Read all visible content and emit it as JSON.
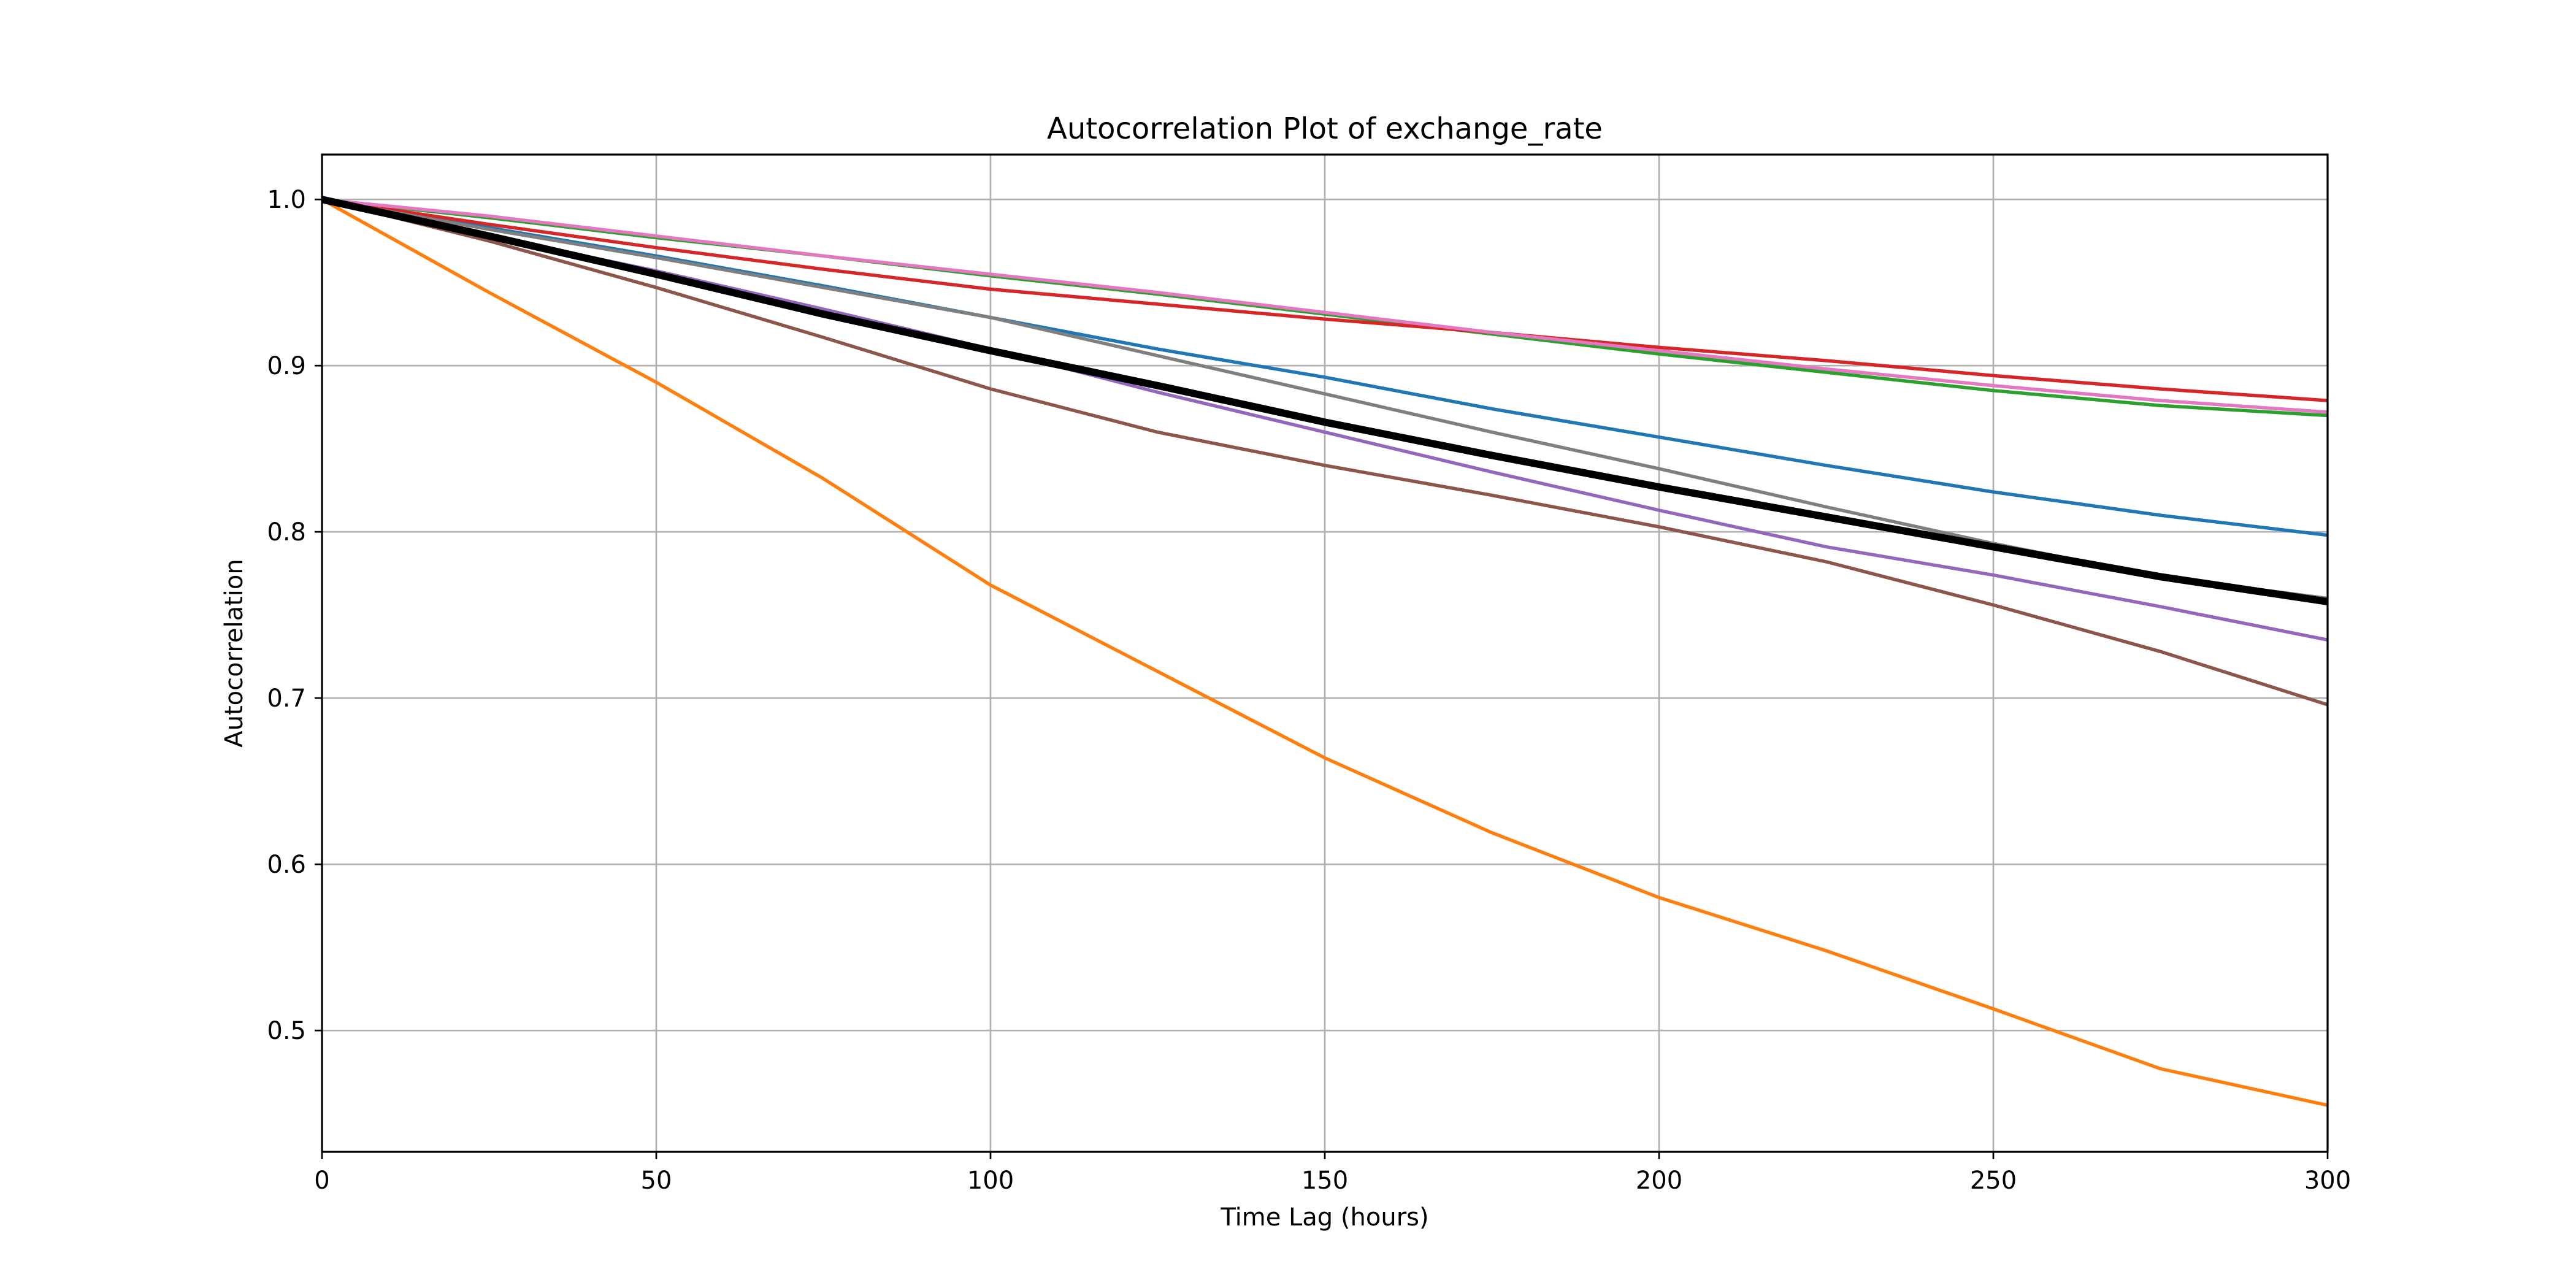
{
  "chart_data": {
    "type": "line",
    "title": "Autocorrelation Plot of exchange_rate",
    "xlabel": "Time Lag (hours)",
    "ylabel": "Autocorrelation",
    "xlim": [
      0,
      300
    ],
    "ylim": [
      0.427,
      1.027
    ],
    "xticks": [
      0,
      50,
      100,
      150,
      200,
      250,
      300
    ],
    "yticks": [
      0.5,
      0.6,
      0.7,
      0.8,
      0.9,
      1.0
    ],
    "ytick_labels": [
      "0.5",
      "0.6",
      "0.7",
      "0.8",
      "0.9",
      "1.0"
    ],
    "grid": true,
    "legend": "none",
    "x": [
      0,
      25,
      50,
      75,
      100,
      125,
      150,
      175,
      200,
      225,
      250,
      275,
      300
    ],
    "series": [
      {
        "color": "#1f77b4",
        "width": "normal",
        "values": [
          1.0,
          0.983,
          0.966,
          0.948,
          0.929,
          0.91,
          0.893,
          0.874,
          0.857,
          0.84,
          0.824,
          0.81,
          0.798
        ]
      },
      {
        "color": "#ff7f0e",
        "width": "normal",
        "values": [
          1.0,
          0.944,
          0.89,
          0.832,
          0.768,
          0.716,
          0.664,
          0.619,
          0.58,
          0.548,
          0.513,
          0.477,
          0.455
        ]
      },
      {
        "color": "#2ca02c",
        "width": "normal",
        "values": [
          1.0,
          0.989,
          0.977,
          0.966,
          0.954,
          0.943,
          0.931,
          0.919,
          0.907,
          0.896,
          0.885,
          0.876,
          0.87
        ]
      },
      {
        "color": "#d62728",
        "width": "normal",
        "values": [
          1.0,
          0.985,
          0.971,
          0.958,
          0.946,
          0.937,
          0.928,
          0.92,
          0.911,
          0.903,
          0.894,
          0.886,
          0.879
        ]
      },
      {
        "color": "#9467bd",
        "width": "normal",
        "values": [
          1.0,
          0.978,
          0.957,
          0.934,
          0.91,
          0.884,
          0.86,
          0.836,
          0.813,
          0.791,
          0.774,
          0.755,
          0.735
        ]
      },
      {
        "color": "#8c564b",
        "width": "normal",
        "values": [
          1.0,
          0.975,
          0.947,
          0.917,
          0.886,
          0.86,
          0.84,
          0.822,
          0.803,
          0.782,
          0.756,
          0.728,
          0.696
        ]
      },
      {
        "color": "#e377c2",
        "width": "normal",
        "values": [
          1.0,
          0.99,
          0.978,
          0.966,
          0.955,
          0.944,
          0.932,
          0.92,
          0.909,
          0.898,
          0.888,
          0.879,
          0.872
        ]
      },
      {
        "color": "#7f7f7f",
        "width": "normal",
        "values": [
          1.0,
          0.982,
          0.965,
          0.947,
          0.929,
          0.906,
          0.883,
          0.86,
          0.838,
          0.815,
          0.793,
          0.773,
          0.76
        ]
      },
      {
        "color": "#000000",
        "width": "thick",
        "values": [
          1.0,
          0.978,
          0.955,
          0.931,
          0.909,
          0.888,
          0.866,
          0.846,
          0.827,
          0.809,
          0.791,
          0.773,
          0.758
        ]
      }
    ]
  }
}
